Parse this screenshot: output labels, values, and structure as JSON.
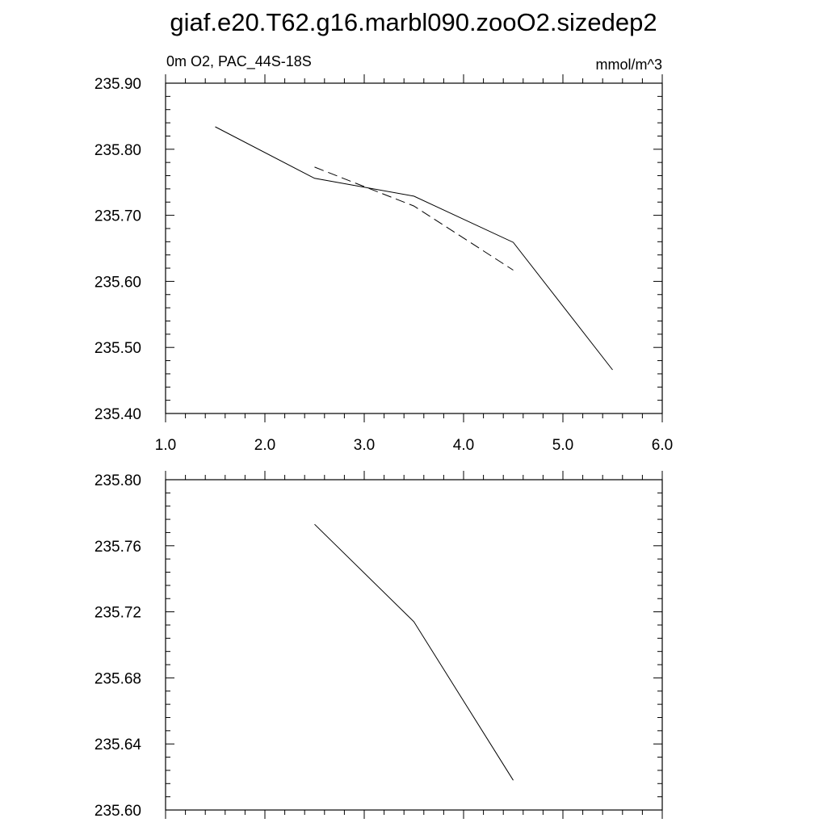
{
  "figure": {
    "title": "giaf.e20.T62.g16.marbl090.zooO2.sizedep2"
  },
  "chart_data": [
    {
      "type": "line",
      "title": "",
      "left_label": "0m O2, PAC_44S-18S",
      "right_label": "mmol/m^3",
      "xlabel": "",
      "ylabel": "",
      "xlim": [
        1.0,
        6.0
      ],
      "ylim": [
        235.4,
        235.9
      ],
      "xticks": [
        1.0,
        2.0,
        3.0,
        4.0,
        5.0,
        6.0
      ],
      "xtick_labels": [
        "1.0",
        "2.0",
        "3.0",
        "4.0",
        "5.0",
        "6.0"
      ],
      "yticks": [
        235.4,
        235.5,
        235.6,
        235.7,
        235.8,
        235.9
      ],
      "ytick_labels": [
        "235.40",
        "235.50",
        "235.60",
        "235.70",
        "235.80",
        "235.90"
      ],
      "x_minor_step": 0.2,
      "y_minor_step": 0.02,
      "grid": false,
      "legend": "none",
      "series": [
        {
          "style": "solid",
          "color": "#000000",
          "x": [
            1.5,
            2.5,
            3.5,
            4.5,
            5.5
          ],
          "values": [
            235.834,
            235.756,
            235.729,
            235.659,
            235.466
          ]
        },
        {
          "style": "dashed",
          "color": "#000000",
          "x": [
            2.5,
            3.5,
            4.5
          ],
          "values": [
            235.773,
            235.714,
            235.617
          ]
        }
      ]
    },
    {
      "type": "line",
      "title": "",
      "xlabel": "",
      "ylabel": "",
      "xlim": [
        1.0,
        6.0
      ],
      "ylim": [
        235.6,
        235.8
      ],
      "xticks": [
        1.0,
        2.0,
        3.0,
        4.0,
        5.0,
        6.0
      ],
      "xtick_labels": [],
      "yticks": [
        235.6,
        235.64,
        235.68,
        235.72,
        235.76,
        235.8
      ],
      "ytick_labels": [
        "235.60",
        "235.64",
        "235.68",
        "235.72",
        "235.76",
        "235.80"
      ],
      "x_minor_step": 0.2,
      "y_minor_step": 0.008,
      "grid": false,
      "legend": "none",
      "series": [
        {
          "style": "solid",
          "color": "#000000",
          "x": [
            2.5,
            3.5,
            4.5
          ],
          "values": [
            235.773,
            235.714,
            235.618
          ]
        }
      ]
    }
  ]
}
